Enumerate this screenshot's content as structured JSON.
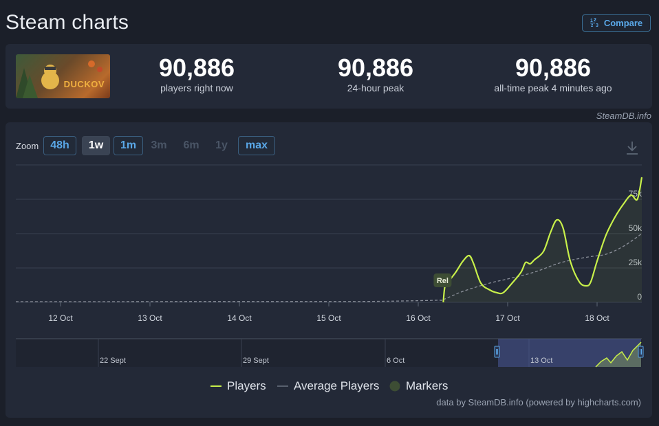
{
  "header": {
    "title": "Steam charts",
    "compare_label": "Compare",
    "compare_icon": "1/2/3"
  },
  "stats": [
    {
      "value": "90,886",
      "label": "players right now"
    },
    {
      "value": "90,886",
      "label": "24-hour peak"
    },
    {
      "value": "90,886",
      "label": "all-time peak 4 minutes ago"
    }
  ],
  "game": {
    "logo_text": "DUCKOV"
  },
  "credit_top": "SteamDB.info",
  "zoom": {
    "label": "Zoom",
    "options": [
      {
        "label": "48h",
        "state": "enabled"
      },
      {
        "label": "1w",
        "state": "selected"
      },
      {
        "label": "1m",
        "state": "enabled"
      },
      {
        "label": "3m",
        "state": "disabled"
      },
      {
        "label": "6m",
        "state": "disabled"
      },
      {
        "label": "1y",
        "state": "disabled"
      },
      {
        "label": "max",
        "state": "enabled"
      }
    ]
  },
  "chart_data": {
    "type": "line",
    "x_ticks": [
      "12 Oct",
      "13 Oct",
      "14 Oct",
      "15 Oct",
      "16 Oct",
      "17 Oct",
      "18 Oct"
    ],
    "y_ticks": [
      "0",
      "25k",
      "50k",
      "75k"
    ],
    "ylim": [
      0,
      100000
    ],
    "xlim": [
      11.5,
      18.5
    ],
    "grid": true,
    "legend_position": "bottom",
    "marker": {
      "label": "Rel",
      "x": 16.28
    },
    "series": [
      {
        "name": "Players",
        "color": "#c8f04a",
        "x": [
          16.28,
          16.3,
          16.35,
          16.42,
          16.5,
          16.57,
          16.62,
          16.7,
          16.8,
          16.88,
          16.95,
          17.05,
          17.15,
          17.2,
          17.25,
          17.3,
          17.4,
          17.48,
          17.55,
          17.62,
          17.7,
          17.8,
          17.88,
          17.93,
          18.0,
          18.1,
          18.2,
          18.3,
          18.38,
          18.45,
          18.5
        ],
        "y": [
          0,
          12000,
          16000,
          22000,
          30000,
          34000,
          28000,
          14000,
          9000,
          7000,
          7000,
          14000,
          22000,
          29000,
          28000,
          31000,
          37000,
          51000,
          60000,
          54000,
          30000,
          15000,
          12000,
          15000,
          30000,
          49000,
          62000,
          72000,
          78000,
          75000,
          91000
        ]
      },
      {
        "name": "Average Players",
        "color": "#8a8f99",
        "x": [
          11.5,
          12.5,
          13.5,
          14.5,
          15.5,
          16.2,
          16.28,
          16.5,
          16.8,
          17.0,
          17.3,
          17.6,
          17.9,
          18.1,
          18.3,
          18.5
        ],
        "y": [
          500,
          500,
          600,
          600,
          700,
          1500,
          2000,
          8000,
          14000,
          17000,
          22000,
          29000,
          33000,
          35000,
          41000,
          50000
        ]
      }
    ]
  },
  "navigator": {
    "labels": [
      "22 Sept",
      "29 Sept",
      "6 Oct",
      "13 Oct"
    ]
  },
  "legend": [
    {
      "name": "Players",
      "color": "#c8f04a"
    },
    {
      "name": "Average Players",
      "color": "#6b7280"
    },
    {
      "name": "Markers",
      "color": "#3d4d34"
    }
  ],
  "credit_bottom": "data by SteamDB.info (powered by highcharts.com)"
}
